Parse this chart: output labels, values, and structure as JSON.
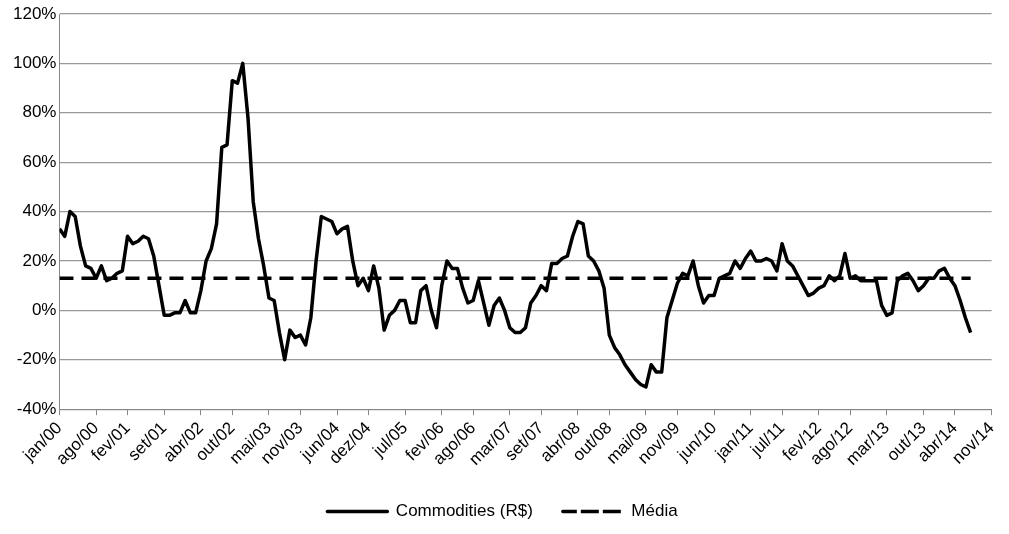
{
  "chart_data": {
    "type": "line",
    "ylim": [
      -40,
      120
    ],
    "yticks": [
      {
        "value": -40,
        "label": "-40%"
      },
      {
        "value": -20,
        "label": "-20%"
      },
      {
        "value": 0,
        "label": "0%"
      },
      {
        "value": 20,
        "label": "20%"
      },
      {
        "value": 40,
        "label": "40%"
      },
      {
        "value": 60,
        "label": "60%"
      },
      {
        "value": 80,
        "label": "80%"
      },
      {
        "value": 100,
        "label": "100%"
      },
      {
        "value": 120,
        "label": "120%"
      }
    ],
    "xlim": [
      "2000-01",
      "2014-11"
    ],
    "xticks": [
      {
        "value": "2000-01",
        "label": "jan/00"
      },
      {
        "value": "2000-08",
        "label": "ago/00"
      },
      {
        "value": "2001-02",
        "label": "fev/01"
      },
      {
        "value": "2001-09",
        "label": "set/01"
      },
      {
        "value": "2002-04",
        "label": "abr/02"
      },
      {
        "value": "2002-10",
        "label": "out/02"
      },
      {
        "value": "2003-05",
        "label": "mai/03"
      },
      {
        "value": "2003-11",
        "label": "nov/03"
      },
      {
        "value": "2004-06",
        "label": "jun/04"
      },
      {
        "value": "2004-12",
        "label": "dez/04"
      },
      {
        "value": "2005-07",
        "label": "jul/05"
      },
      {
        "value": "2006-02",
        "label": "fev/06"
      },
      {
        "value": "2006-08",
        "label": "ago/06"
      },
      {
        "value": "2007-03",
        "label": "mar/07"
      },
      {
        "value": "2007-09",
        "label": "set/07"
      },
      {
        "value": "2008-04",
        "label": "abr/08"
      },
      {
        "value": "2008-10",
        "label": "out/08"
      },
      {
        "value": "2009-05",
        "label": "mai/09"
      },
      {
        "value": "2009-11",
        "label": "nov/09"
      },
      {
        "value": "2010-06",
        "label": "jun/10"
      },
      {
        "value": "2011-01",
        "label": "jan/11"
      },
      {
        "value": "2011-07",
        "label": "jul/11"
      },
      {
        "value": "2012-02",
        "label": "fev/12"
      },
      {
        "value": "2012-08",
        "label": "ago/12"
      },
      {
        "value": "2013-03",
        "label": "mar/13"
      },
      {
        "value": "2013-10",
        "label": "out/13"
      },
      {
        "value": "2014-04",
        "label": "abr/14"
      },
      {
        "value": "2014-11",
        "label": "nov/14"
      }
    ],
    "x": [
      "2000-01",
      "2000-02",
      "2000-03",
      "2000-04",
      "2000-05",
      "2000-06",
      "2000-07",
      "2000-08",
      "2000-09",
      "2000-10",
      "2000-11",
      "2000-12",
      "2001-01",
      "2001-02",
      "2001-03",
      "2001-04",
      "2001-05",
      "2001-06",
      "2001-07",
      "2001-08",
      "2001-09",
      "2001-10",
      "2001-11",
      "2001-12",
      "2002-01",
      "2002-02",
      "2002-03",
      "2002-04",
      "2002-05",
      "2002-06",
      "2002-07",
      "2002-08",
      "2002-09",
      "2002-10",
      "2002-11",
      "2002-12",
      "2003-01",
      "2003-02",
      "2003-03",
      "2003-04",
      "2003-05",
      "2003-06",
      "2003-07",
      "2003-08",
      "2003-09",
      "2003-10",
      "2003-11",
      "2003-12",
      "2004-01",
      "2004-02",
      "2004-03",
      "2004-04",
      "2004-05",
      "2004-06",
      "2004-07",
      "2004-08",
      "2004-09",
      "2004-10",
      "2004-11",
      "2004-12",
      "2005-01",
      "2005-02",
      "2005-03",
      "2005-04",
      "2005-05",
      "2005-06",
      "2005-07",
      "2005-08",
      "2005-09",
      "2005-10",
      "2005-11",
      "2005-12",
      "2006-01",
      "2006-02",
      "2006-03",
      "2006-04",
      "2006-05",
      "2006-06",
      "2006-07",
      "2006-08",
      "2006-09",
      "2006-10",
      "2006-11",
      "2006-12",
      "2007-01",
      "2007-02",
      "2007-03",
      "2007-04",
      "2007-05",
      "2007-06",
      "2007-07",
      "2007-08",
      "2007-09",
      "2007-10",
      "2007-11",
      "2007-12",
      "2008-01",
      "2008-02",
      "2008-03",
      "2008-04",
      "2008-05",
      "2008-06",
      "2008-07",
      "2008-08",
      "2008-09",
      "2008-10",
      "2008-11",
      "2008-12",
      "2009-01",
      "2009-02",
      "2009-03",
      "2009-04",
      "2009-05",
      "2009-06",
      "2009-07",
      "2009-08",
      "2009-09",
      "2009-10",
      "2009-11",
      "2009-12",
      "2010-01",
      "2010-02",
      "2010-03",
      "2010-04",
      "2010-05",
      "2010-06",
      "2010-07",
      "2010-08",
      "2010-09",
      "2010-10",
      "2010-11",
      "2010-12",
      "2011-01",
      "2011-02",
      "2011-03",
      "2011-04",
      "2011-05",
      "2011-06",
      "2011-07",
      "2011-08",
      "2011-09",
      "2011-10",
      "2011-11",
      "2011-12",
      "2012-01",
      "2012-02",
      "2012-03",
      "2012-04",
      "2012-05",
      "2012-06",
      "2012-07",
      "2012-08",
      "2012-09",
      "2012-10",
      "2012-11",
      "2012-12",
      "2013-01",
      "2013-02",
      "2013-03",
      "2013-04",
      "2013-05",
      "2013-06",
      "2013-07",
      "2013-08",
      "2013-09",
      "2013-10",
      "2013-11",
      "2013-12",
      "2014-01",
      "2014-02",
      "2014-03",
      "2014-04",
      "2014-05",
      "2014-06",
      "2014-07"
    ],
    "series": [
      {
        "name": "Commodities (R$)",
        "color": "#000000",
        "line_style": "solid",
        "values": [
          33,
          30,
          40,
          38,
          26,
          18,
          17,
          13,
          18,
          12,
          13,
          15,
          16,
          30,
          27,
          28,
          30,
          29,
          22,
          10,
          -2,
          -2,
          -1,
          -1,
          4,
          -1,
          -1,
          8,
          20,
          25,
          35,
          66,
          67,
          93,
          92,
          100,
          78,
          44,
          29,
          18,
          5,
          4,
          -9,
          -20,
          -8,
          -11,
          -10,
          -14,
          -3,
          20,
          38,
          37,
          36,
          31,
          33,
          34,
          20,
          10,
          13,
          8,
          18,
          9,
          -8,
          -2,
          0,
          4,
          4,
          -5,
          -5,
          8,
          10,
          0,
          -7,
          10,
          20,
          17,
          17,
          9,
          3,
          4,
          12,
          3,
          -6,
          2,
          5,
          0,
          -7,
          -9,
          -9,
          -7,
          3,
          6,
          10,
          8,
          19,
          19,
          21,
          22,
          30,
          36,
          35,
          22,
          20,
          16,
          9,
          -10,
          -15,
          -18,
          -22,
          -25,
          -28,
          -30,
          -31,
          -22,
          -25,
          -25,
          -3,
          4,
          11,
          15,
          14,
          20,
          10,
          3,
          6,
          6,
          13,
          14,
          15,
          20,
          17,
          21,
          24,
          20,
          20,
          21,
          20,
          16,
          27,
          20,
          18,
          14,
          10,
          6,
          7,
          9,
          10,
          14,
          12,
          14,
          23,
          13,
          14,
          12,
          12,
          12,
          12,
          2,
          -2,
          -1,
          12,
          14,
          15,
          12,
          8,
          10,
          13,
          13,
          16,
          17,
          13,
          10,
          4,
          -3,
          -9
        ]
      },
      {
        "name": "Média",
        "color": "#000000",
        "line_style": "dashed",
        "x": [
          "2000-01",
          "2014-07"
        ],
        "values": [
          13,
          13
        ]
      }
    ],
    "grid": "y",
    "legend": "bottom",
    "marker": "none"
  }
}
